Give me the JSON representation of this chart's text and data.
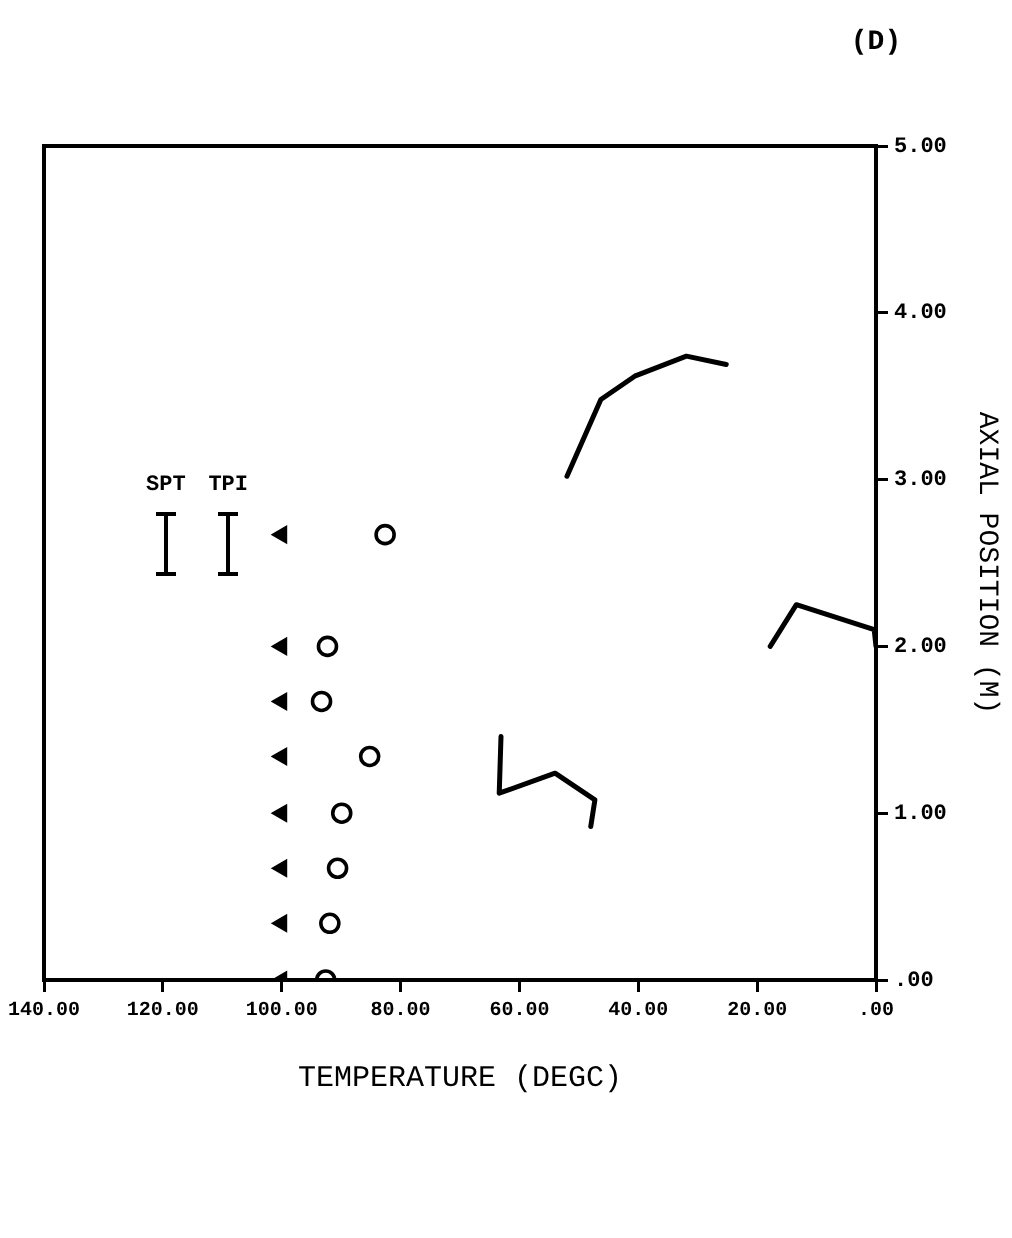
{
  "chart_data": {
    "type": "scatter",
    "xlabel": "TEMPERATURE (DEGC)",
    "ylabel": "AXIAL POSITION (M)",
    "annotations": [
      "(D)",
      "SPT",
      "TPI"
    ],
    "xlim": [
      140,
      0
    ],
    "xticks": [
      {
        "value": 140,
        "label": "140.00"
      },
      {
        "value": 120,
        "label": "120.00"
      },
      {
        "value": 100,
        "label": "100.00"
      },
      {
        "value": 80,
        "label": "80.00"
      },
      {
        "value": 60,
        "label": "60.00"
      },
      {
        "value": 40,
        "label": "40.00"
      },
      {
        "value": 20,
        "label": "20.00"
      },
      {
        "value": 0,
        "label": ".00"
      }
    ],
    "ylim": [
      0,
      5
    ],
    "yticks": [
      {
        "value": 0,
        "label": ".00"
      },
      {
        "value": 1,
        "label": "1.00"
      },
      {
        "value": 2,
        "label": "2.00"
      },
      {
        "value": 3,
        "label": "3.00"
      },
      {
        "value": 4,
        "label": "4.00"
      },
      {
        "value": 5,
        "label": "5.00"
      }
    ],
    "grid": false,
    "legend": false,
    "series": [
      {
        "type": "scatter",
        "marker": "triangle",
        "color": "#000000",
        "x": [
          100,
          100,
          100,
          100,
          100,
          100,
          100,
          100
        ],
        "values": [
          0,
          0.34,
          0.67,
          1.0,
          1.34,
          1.67,
          2.0,
          2.67
        ]
      },
      {
        "type": "scatter",
        "marker": "circle",
        "color": "#000000",
        "x": [
          92.6,
          91.9,
          90.6,
          89.9,
          85.2,
          93.3,
          92.3,
          82.6
        ],
        "values": [
          0,
          0.34,
          0.67,
          1.0,
          1.34,
          1.67,
          2.0,
          2.67
        ]
      },
      {
        "type": "line",
        "marker": "none",
        "line_style": "solid",
        "color": "#000000",
        "x": [
          48,
          47.3,
          54,
          63.4,
          63.1
        ],
        "values": [
          0.92,
          1.08,
          1.24,
          1.12,
          1.46
        ]
      },
      {
        "type": "line",
        "marker": "none",
        "line_style": "solid",
        "color": "#000000",
        "x": [
          52,
          46.3,
          40.6,
          31.9,
          25.2
        ],
        "values": [
          3.02,
          3.48,
          3.62,
          3.74,
          3.69
        ]
      },
      {
        "type": "line",
        "marker": "none",
        "line_style": "solid",
        "color": "#000000",
        "x": [
          17.8,
          13.4,
          0.3,
          0
        ],
        "values": [
          2.0,
          2.25,
          2.1,
          2.0
        ]
      }
    ]
  }
}
